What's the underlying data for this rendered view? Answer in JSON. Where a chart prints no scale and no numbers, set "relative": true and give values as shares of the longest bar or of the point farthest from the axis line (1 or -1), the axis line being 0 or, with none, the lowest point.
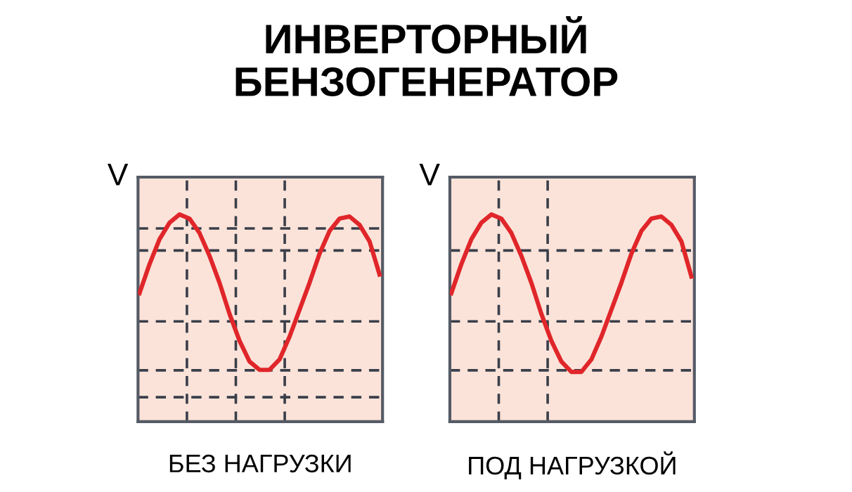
{
  "chart_data": [
    {
      "type": "line",
      "title": "ИНВЕРТОРНЫЙ\nБЕНЗОГЕНЕРАТОР",
      "ylabel": "V",
      "xlabel": "БЕЗ НАГРУЗКИ",
      "relative": true,
      "categories": [
        null,
        null,
        null,
        null,
        null,
        null,
        null,
        null,
        null,
        null,
        null,
        null,
        null,
        null,
        null,
        null,
        null,
        null,
        null,
        null,
        null,
        null,
        null,
        null,
        null
      ],
      "series": [
        {
          "color": "#e0262a",
          "values": [
            0.62,
            0.76,
            0.88,
            0.96,
            1.0,
            0.98,
            0.91,
            0.8,
            0.67,
            0.52,
            0.39,
            0.29,
            0.25,
            0.25,
            0.3,
            0.41,
            0.54,
            0.67,
            0.81,
            0.92,
            0.98,
            0.99,
            0.95,
            0.87,
            0.71
          ]
        }
      ],
      "line_style": "solid",
      "marker": "none"
    },
    {
      "type": "line",
      "ylabel": "V",
      "xlabel": "ПОД НАГРУЗКОЙ",
      "relative": true,
      "categories": [
        null,
        null,
        null,
        null,
        null,
        null,
        null,
        null,
        null,
        null,
        null,
        null,
        null,
        null,
        null,
        null,
        null,
        null,
        null,
        null,
        null,
        null,
        null,
        null,
        null
      ],
      "series": [
        {
          "color": "#e0262a",
          "values": [
            0.62,
            0.76,
            0.88,
            0.96,
            1.0,
            0.98,
            0.91,
            0.8,
            0.67,
            0.52,
            0.39,
            0.29,
            0.24,
            0.24,
            0.3,
            0.41,
            0.54,
            0.67,
            0.81,
            0.92,
            0.98,
            0.99,
            0.95,
            0.87,
            0.7
          ]
        }
      ],
      "line_style": "solid",
      "marker": "none"
    }
  ]
}
